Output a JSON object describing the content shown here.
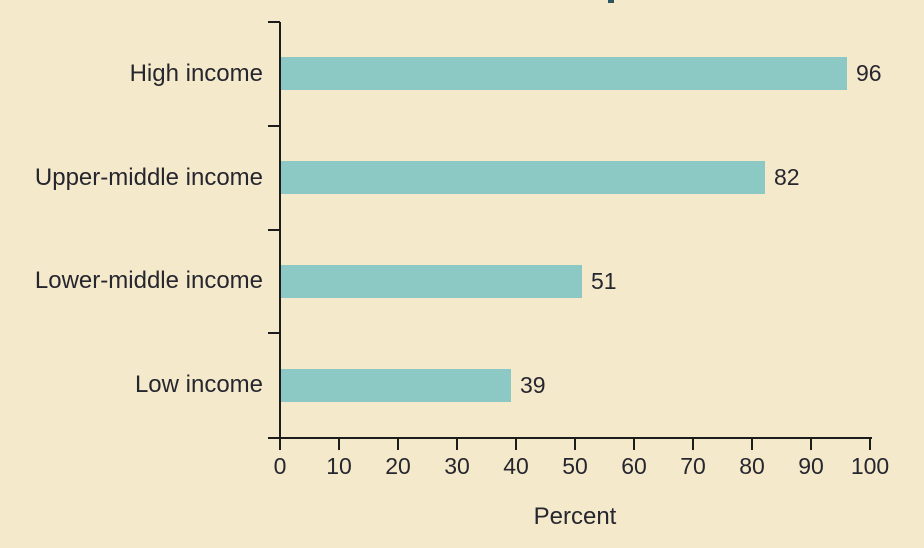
{
  "figure": {
    "background_color": "#f5e9cc",
    "text_color": "#26262e",
    "axis_color": "#1c1c1c",
    "artifact_color": "#2a5560"
  },
  "chart_data": {
    "type": "bar",
    "orientation": "horizontal",
    "title": "",
    "categories": [
      "High income",
      "Upper-middle income",
      "Lower-middle income",
      "Low income"
    ],
    "values": [
      96,
      82,
      51,
      39
    ],
    "data_labels": [
      "96",
      "82",
      "51",
      "39"
    ],
    "xlabel": "Percent",
    "ylabel": "",
    "xlim": [
      0,
      100
    ],
    "xticks": [
      0,
      10,
      20,
      30,
      40,
      50,
      60,
      70,
      80,
      90,
      100
    ],
    "xtick_labels": [
      "0",
      "10",
      "20",
      "30",
      "40",
      "50",
      "60",
      "70",
      "80",
      "90",
      "100"
    ],
    "grid": false,
    "legend": false,
    "bar_color": "#8dc9c4"
  }
}
